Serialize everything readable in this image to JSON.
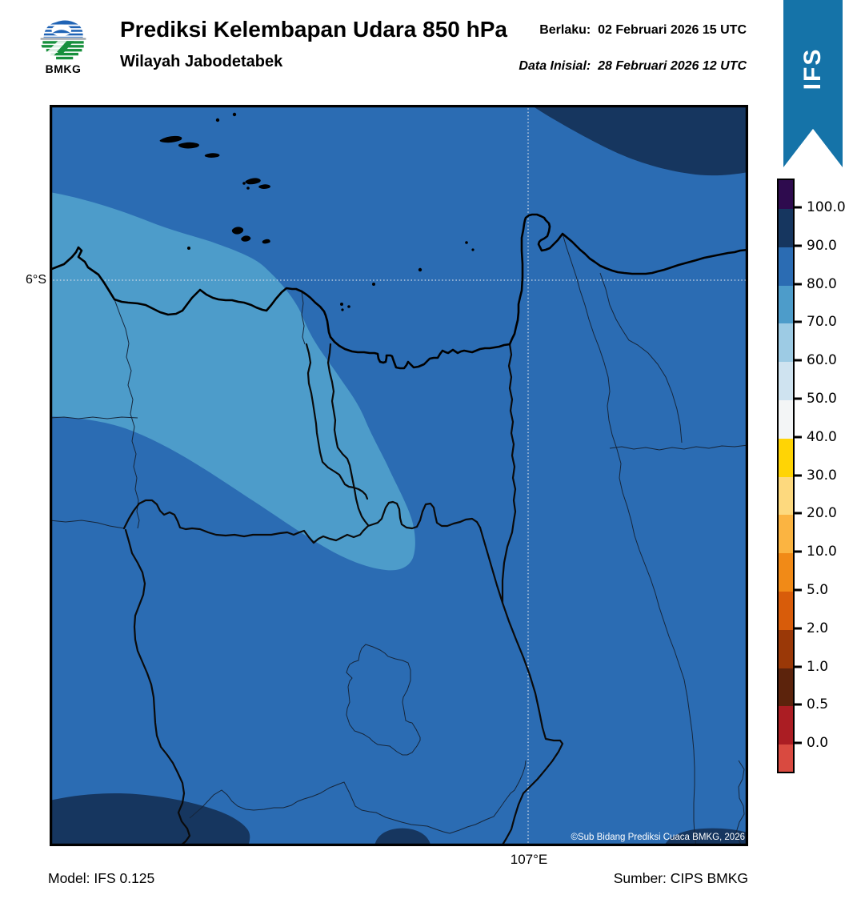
{
  "header": {
    "logo_text": "BMKG",
    "title": "Prediksi Kelembapan Udara 850 hPa",
    "subtitle": "Wilayah Jabodetabek",
    "valid_label": "Berlaku:",
    "valid_value": "02 Februari 2026 15 UTC",
    "init_label": "Data Inisial:",
    "init_value": "28 Februari 2026 12 UTC",
    "ribbon_label": "IFS"
  },
  "map": {
    "lat_tick": "6°S",
    "lon_tick": "107°E",
    "copyright": "©Sub Bidang Prediksi Cuaca BMKG, 2026",
    "colors": {
      "rh_90_100": "#16365f",
      "rh_80_90": "#2b6cb3",
      "rh_70_80": "#4d9cca",
      "coast": "#000000",
      "admin_thick": "#0a0a0a",
      "admin_thin": "#16263b",
      "gridline": "#d4dce8"
    }
  },
  "colorbar": {
    "ticks": [
      "100.0",
      "90.0",
      "80.0",
      "70.0",
      "60.0",
      "50.0",
      "40.0",
      "30.0",
      "20.0",
      "10.0",
      "5.0",
      "2.0",
      "1.0",
      "0.5",
      "0.0"
    ],
    "levels": [
      "#2e0b4e",
      "#16365f",
      "#2b6cb3",
      "#4d9cca",
      "#9dcbe4",
      "#cfe3f0",
      "#f3f5f6",
      "#ffd405",
      "#fdd97e",
      "#fbb441",
      "#f18a17",
      "#d85c0a",
      "#9a3807",
      "#5c230c",
      "#ab1d23",
      "#d94a40"
    ]
  },
  "footer": {
    "model": "Model: IFS 0.125",
    "source": "Sumber: CIPS BMKG"
  },
  "chart_data": {
    "type": "heatmap",
    "title": "Prediksi Kelembapan Udara 850 hPa — Wilayah Jabodetabek",
    "units": "%",
    "scale_levels": [
      0.0,
      0.5,
      1.0,
      2.0,
      5.0,
      10.0,
      20.0,
      30.0,
      40.0,
      50.0,
      60.0,
      70.0,
      80.0,
      90.0,
      100.0
    ],
    "palette_top_to_bottom": [
      "#2e0b4e",
      "#16365f",
      "#2b6cb3",
      "#4d9cca",
      "#9dcbe4",
      "#cfe3f0",
      "#f3f5f6",
      "#ffd405",
      "#fdd97e",
      "#fbb441",
      "#f18a17",
      "#d85c0a",
      "#9a3807",
      "#5c230c",
      "#ab1d23",
      "#d94a40"
    ],
    "gridlines": {
      "latitude": "6°S",
      "longitude": "107°E"
    },
    "field_summary": [
      {
        "region": "most of domain",
        "value_range": "80-90"
      },
      {
        "region": "northwest-to-center diagonal band",
        "value_range": "70-80"
      },
      {
        "region": "top-right corner (offshore northeast)",
        "value_range": "90-100"
      },
      {
        "region": "bottom-left, bottom-center and bottom-right edge patches",
        "value_range": "90-100"
      }
    ]
  }
}
